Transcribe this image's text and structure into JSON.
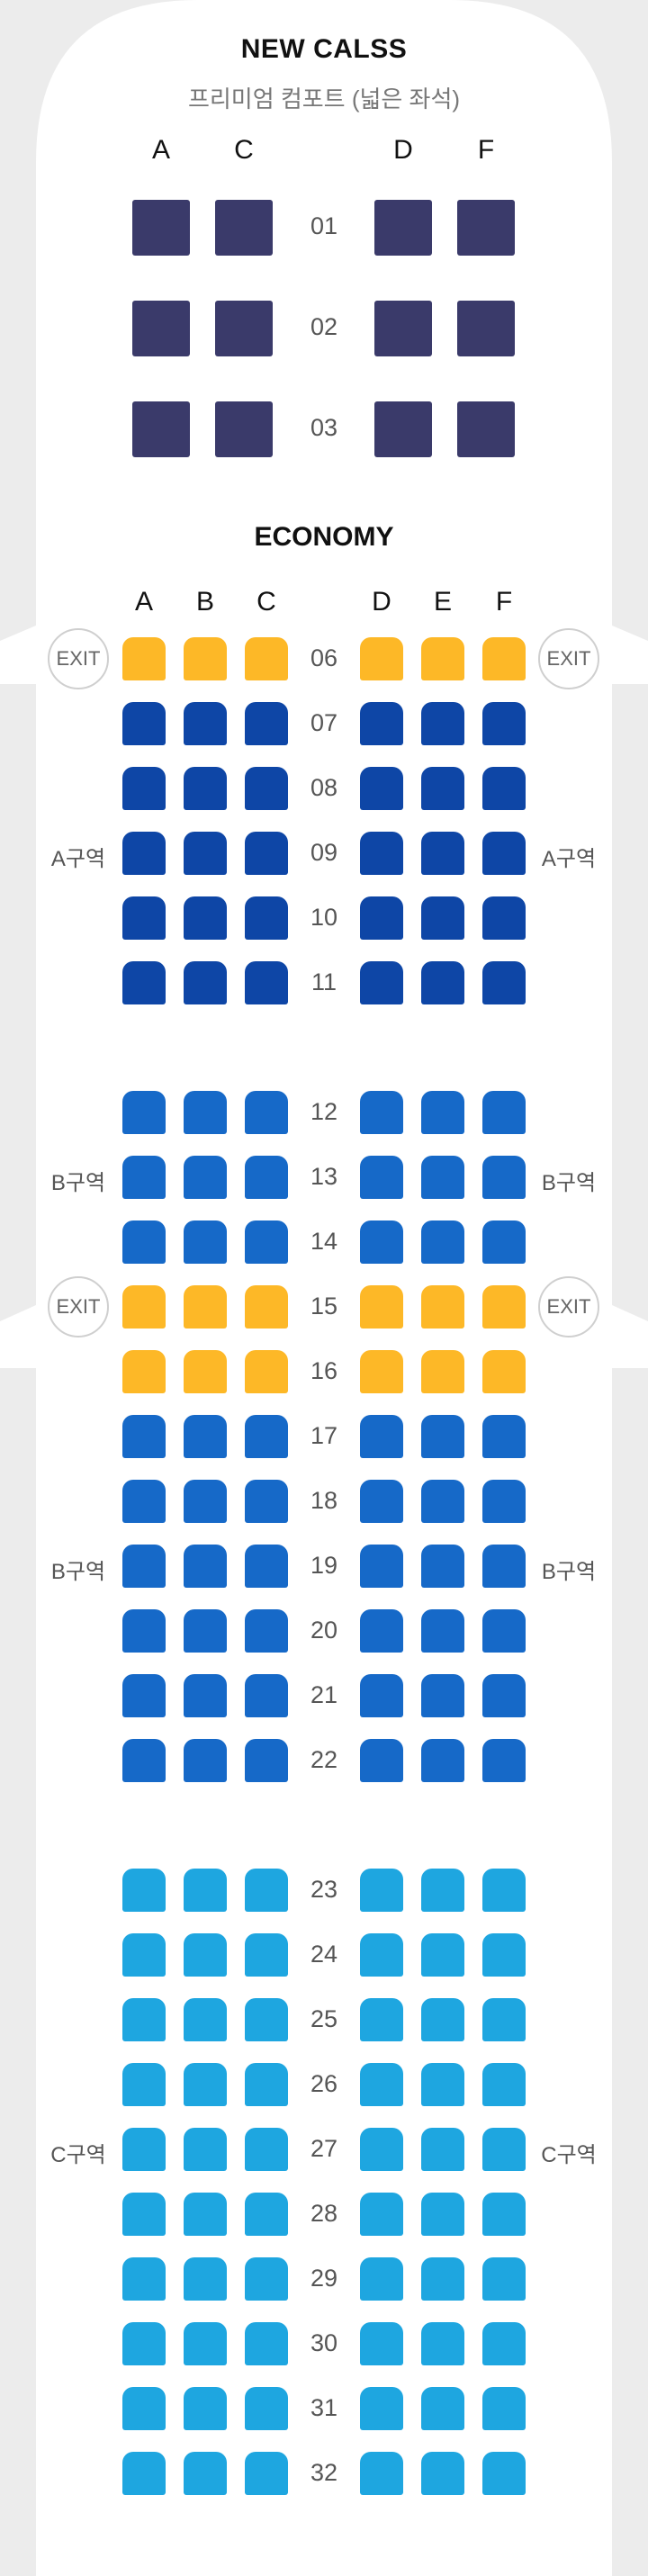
{
  "new_class": {
    "title": "NEW CALSS",
    "subtitle": "프리미엄 컴포트 (넓은 좌석)",
    "columns": [
      "A",
      "C",
      "D",
      "F"
    ],
    "rows": [
      "01",
      "02",
      "03"
    ],
    "seat_color": "#3a3a6a"
  },
  "economy": {
    "title": "ECONOMY",
    "columns": [
      "A",
      "B",
      "C",
      "D",
      "E",
      "F"
    ],
    "exit_label": "EXIT",
    "colors": {
      "exit_row": "#fdb827",
      "zone_a": "#0e46a6",
      "zone_b": "#1669c8",
      "zone_c": "#1ea6e0"
    },
    "rows": [
      {
        "num": "06",
        "color": "#fdb827"
      },
      {
        "num": "07",
        "color": "#0e46a6"
      },
      {
        "num": "08",
        "color": "#0e46a6"
      },
      {
        "num": "09",
        "color": "#0e46a6"
      },
      {
        "num": "10",
        "color": "#0e46a6"
      },
      {
        "num": "11",
        "color": "#0e46a6"
      },
      {
        "num": "12",
        "color": "#1669c8"
      },
      {
        "num": "13",
        "color": "#1669c8"
      },
      {
        "num": "14",
        "color": "#1669c8"
      },
      {
        "num": "15",
        "color": "#fdb827"
      },
      {
        "num": "16",
        "color": "#fdb827"
      },
      {
        "num": "17",
        "color": "#1669c8"
      },
      {
        "num": "18",
        "color": "#1669c8"
      },
      {
        "num": "19",
        "color": "#1669c8"
      },
      {
        "num": "20",
        "color": "#1669c8"
      },
      {
        "num": "21",
        "color": "#1669c8"
      },
      {
        "num": "22",
        "color": "#1669c8"
      },
      {
        "num": "23",
        "color": "#1ea6e0"
      },
      {
        "num": "24",
        "color": "#1ea6e0"
      },
      {
        "num": "25",
        "color": "#1ea6e0"
      },
      {
        "num": "26",
        "color": "#1ea6e0"
      },
      {
        "num": "27",
        "color": "#1ea6e0"
      },
      {
        "num": "28",
        "color": "#1ea6e0"
      },
      {
        "num": "29",
        "color": "#1ea6e0"
      },
      {
        "num": "30",
        "color": "#1ea6e0"
      },
      {
        "num": "31",
        "color": "#1ea6e0"
      },
      {
        "num": "32",
        "color": "#1ea6e0"
      }
    ],
    "zones": [
      {
        "label": "A구역",
        "at_row": "09"
      },
      {
        "label": "B구역",
        "at_row": "13"
      },
      {
        "label": "B구역",
        "at_row": "19"
      },
      {
        "label": "C구역",
        "at_row": "27"
      }
    ],
    "exit_rows": [
      "06",
      "15"
    ]
  }
}
